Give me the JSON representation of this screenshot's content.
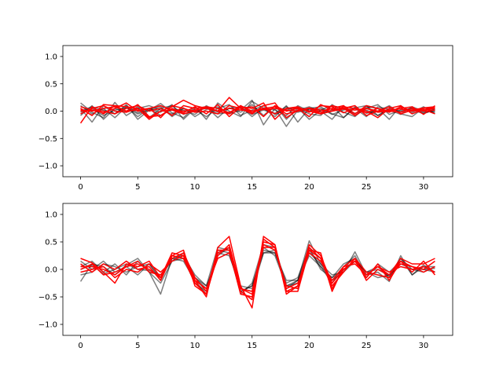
{
  "chart_data": [
    {
      "type": "line",
      "xlim": [
        -1.55,
        32.55
      ],
      "ylim": [
        -1.2,
        1.2
      ],
      "xticks": [
        0,
        5,
        10,
        15,
        20,
        25,
        30
      ],
      "yticks": [
        -1.0,
        -0.5,
        0.0,
        0.5,
        1.0
      ],
      "xtick_labels": [
        "0",
        "5",
        "10",
        "15",
        "20",
        "25",
        "30"
      ],
      "ytick_labels": [
        "−1.0",
        "−0.5",
        "0.0",
        "0.5",
        "1.0"
      ],
      "legend": "none",
      "grid": false,
      "colors": {
        "reference": "#000000",
        "prediction": "#ff0000"
      },
      "series": [
        {
          "group": "reference",
          "values": [
            0.15,
            -0.02,
            -0.12,
            0.16,
            -0.08,
            0.05,
            0.1,
            0.02,
            -0.05,
            0.06,
            -0.1,
            0.03,
            0.08,
            -0.05,
            0.02,
            0.2,
            -0.25,
            0.05,
            -0.28,
            0.02,
            0.08,
            0.0,
            -0.15,
            0.1,
            -0.08,
            0.05,
            0.12,
            -0.06,
            0.02,
            0.05,
            -0.02,
            0.0
          ]
        },
        {
          "group": "reference",
          "values": [
            0.05,
            -0.2,
            0.1,
            -0.05,
            0.12,
            -0.15,
            0.02,
            0.14,
            -0.03,
            -0.12,
            0.08,
            -0.15,
            0.15,
            0.0,
            -0.1,
            0.18,
            0.05,
            -0.1,
            0.1,
            -0.2,
            0.05,
            0.08,
            -0.05,
            -0.12,
            0.06,
            0.1,
            -0.08,
            0.02,
            -0.06,
            0.08,
            0.0,
            -0.02
          ]
        },
        {
          "group": "reference",
          "values": [
            -0.08,
            0.1,
            -0.15,
            0.05,
            -0.02,
            0.08,
            -0.12,
            0.05,
            0.1,
            -0.06,
            0.03,
            -0.1,
            0.05,
            0.12,
            -0.08,
            0.02,
            0.1,
            -0.06,
            0.04,
            0.06,
            -0.15,
            0.02,
            0.1,
            -0.12,
            0.08,
            -0.04,
            0.0,
            0.1,
            -0.05,
            -0.1,
            0.06,
            0.02
          ]
        },
        {
          "group": "reference",
          "values": [
            0.1,
            -0.05,
            0.05,
            -0.12,
            0.08,
            -0.1,
            0.05,
            -0.02,
            0.12,
            -0.15,
            0.05,
            0.08,
            -0.12,
            0.06,
            -0.02,
            0.12,
            -0.08,
            0.1,
            -0.15,
            0.05,
            -0.05,
            -0.08,
            0.12,
            -0.02,
            -0.1,
            0.08,
            0.05,
            -0.15,
            0.1,
            -0.03,
            0.08,
            -0.05
          ]
        },
        {
          "group": "reference",
          "values": [
            -0.02,
            0.05,
            -0.08,
            0.02,
            0.06,
            -0.05,
            0.02,
            0.08,
            -0.1,
            0.05,
            -0.02,
            0.06,
            -0.05,
            -0.02,
            0.06,
            -0.06,
            0.02,
            -0.04,
            0.08,
            -0.02,
            0.03,
            -0.05,
            0.02,
            0.06,
            -0.04,
            0.02,
            -0.08,
            0.05,
            0.0,
            0.03,
            -0.05,
            0.04
          ]
        },
        {
          "group": "reference",
          "values": [
            0.0,
            0.08,
            0.02,
            -0.05,
            0.1,
            -0.03,
            0.05,
            -0.08,
            0.03,
            0.02,
            -0.06,
            0.1,
            -0.02,
            0.05,
            0.08,
            -0.1,
            0.06,
            0.02,
            -0.08,
            0.1,
            0.0,
            0.05,
            -0.06,
            0.02,
            0.05,
            -0.1,
            0.08,
            0.03,
            -0.02,
            0.06,
            -0.04,
            0.02
          ]
        },
        {
          "group": "prediction",
          "values": [
            -0.22,
            0.08,
            -0.05,
            0.1,
            0.08,
            0.05,
            -0.15,
            0.0,
            0.08,
            0.2,
            0.1,
            0.05,
            0.0,
            0.25,
            0.05,
            -0.05,
            0.1,
            0.15,
            -0.12,
            0.02,
            0.05,
            -0.05,
            0.1,
            0.05,
            0.1,
            -0.08,
            0.0,
            0.08,
            -0.05,
            0.02,
            0.06,
            0.08
          ]
        },
        {
          "group": "prediction",
          "values": [
            0.05,
            -0.08,
            0.12,
            0.1,
            0.0,
            0.12,
            -0.1,
            -0.08,
            0.05,
            -0.03,
            0.08,
            -0.05,
            0.12,
            -0.1,
            0.08,
            0.05,
            0.15,
            -0.15,
            0.05,
            0.08,
            -0.02,
            0.1,
            0.08,
            -0.03,
            0.05,
            0.0,
            -0.12,
            0.05,
            0.1,
            -0.05,
            0.03,
            -0.05
          ]
        },
        {
          "group": "prediction",
          "values": [
            0.0,
            0.02,
            -0.03,
            0.05,
            0.15,
            0.0,
            0.05,
            -0.12,
            0.1,
            0.05,
            -0.02,
            0.0,
            -0.05,
            0.1,
            0.05,
            0.08,
            -0.1,
            0.1,
            0.0,
            0.05,
            -0.1,
            0.12,
            0.03,
            0.05,
            -0.08,
            0.05,
            -0.02,
            0.0,
            0.05,
            0.08,
            -0.06,
            0.1
          ]
        },
        {
          "group": "prediction",
          "values": [
            0.08,
            0.02,
            0.0,
            -0.05,
            0.05,
            0.1,
            0.0,
            0.05,
            -0.08,
            0.1,
            0.05,
            0.08,
            0.0,
            -0.05,
            0.1,
            -0.03,
            0.05,
            0.08,
            -0.05,
            0.0,
            0.06,
            -0.02,
            0.05,
            0.1,
            -0.05,
            0.1,
            0.05,
            -0.02,
            0.08,
            0.0,
            0.05,
            0.06
          ]
        },
        {
          "group": "prediction",
          "values": [
            -0.05,
            0.05,
            0.1,
            0.0,
            -0.02,
            0.05,
            -0.12,
            0.0,
            0.02,
            -0.05,
            0.0,
            0.08,
            0.05,
            -0.03,
            0.1,
            0.0,
            0.05,
            -0.05,
            0.05,
            0.06,
            0.0,
            -0.05,
            0.0,
            0.08,
            0.05,
            -0.03,
            0.05,
            0.0,
            -0.02,
            0.05,
            0.0,
            0.02
          ]
        },
        {
          "group": "prediction",
          "values": [
            0.02,
            0.0,
            0.05,
            0.08,
            0.0,
            0.02,
            0.05,
            0.1,
            0.02,
            0.0,
            0.02,
            0.05,
            0.0,
            0.05,
            0.02,
            0.0,
            0.03,
            0.05,
            0.02,
            0.0,
            0.05,
            0.02,
            0.0,
            0.04,
            0.02,
            0.05,
            0.0,
            0.02,
            0.04,
            0.0,
            0.02,
            0.05
          ]
        }
      ]
    },
    {
      "type": "line",
      "xlim": [
        -1.55,
        32.55
      ],
      "ylim": [
        -1.2,
        1.2
      ],
      "xticks": [
        0,
        5,
        10,
        15,
        20,
        25,
        30
      ],
      "yticks": [
        -1.0,
        -0.5,
        0.0,
        0.5,
        1.0
      ],
      "xtick_labels": [
        "0",
        "5",
        "10",
        "15",
        "20",
        "25",
        "30"
      ],
      "ytick_labels": [
        "−1.0",
        "−0.5",
        "0.0",
        "0.5",
        "1.0"
      ],
      "legend": "none",
      "grid": false,
      "colors": {
        "reference": "#000000",
        "prediction": "#ff0000"
      },
      "series": [
        {
          "group": "reference",
          "values": [
            -0.22,
            0.1,
            0.05,
            -0.1,
            0.08,
            0.2,
            -0.05,
            -0.45,
            0.2,
            0.25,
            -0.1,
            -0.3,
            0.4,
            0.35,
            -0.45,
            -0.25,
            0.45,
            0.4,
            -0.3,
            -0.2,
            0.52,
            0.1,
            -0.2,
            -0.05,
            0.32,
            -0.1,
            -0.05,
            -0.22,
            0.25,
            -0.1,
            0.08,
            -0.05
          ]
        },
        {
          "group": "reference",
          "values": [
            0.15,
            0.0,
            0.15,
            -0.05,
            0.05,
            -0.1,
            0.1,
            -0.2,
            0.25,
            0.2,
            -0.25,
            -0.4,
            0.35,
            0.3,
            -0.4,
            -0.3,
            0.35,
            0.3,
            -0.25,
            -0.15,
            0.4,
            0.0,
            -0.15,
            0.1,
            0.2,
            -0.05,
            0.05,
            -0.15,
            0.2,
            0.0,
            -0.05,
            0.05
          ]
        },
        {
          "group": "reference",
          "values": [
            0.05,
            0.15,
            -0.05,
            0.1,
            -0.1,
            0.15,
            -0.05,
            -0.25,
            0.15,
            0.3,
            -0.15,
            -0.35,
            0.25,
            0.4,
            -0.35,
            -0.4,
            0.3,
            0.35,
            -0.35,
            -0.2,
            0.35,
            0.05,
            -0.25,
            0.05,
            0.25,
            -0.15,
            0.1,
            -0.05,
            0.15,
            0.05,
            0.0,
            -0.05
          ]
        },
        {
          "group": "reference",
          "values": [
            -0.1,
            -0.05,
            0.1,
            0.05,
            -0.05,
            0.05,
            0.1,
            -0.15,
            0.2,
            0.15,
            -0.2,
            -0.45,
            0.3,
            0.25,
            -0.3,
            -0.35,
            0.4,
            0.25,
            -0.3,
            -0.25,
            0.3,
            0.1,
            -0.1,
            -0.05,
            0.15,
            -0.05,
            -0.15,
            -0.1,
            0.2,
            -0.1,
            0.05,
            0.05
          ]
        },
        {
          "group": "reference",
          "values": [
            0.0,
            0.08,
            -0.08,
            0.0,
            0.1,
            0.0,
            -0.02,
            -0.1,
            0.15,
            0.2,
            -0.15,
            -0.3,
            0.2,
            0.3,
            -0.4,
            -0.3,
            0.3,
            0.3,
            -0.2,
            -0.2,
            0.25,
            0.05,
            -0.15,
            0.0,
            0.15,
            -0.05,
            0.0,
            -0.12,
            0.1,
            0.0,
            0.0,
            0.02
          ]
        },
        {
          "group": "prediction",
          "values": [
            0.2,
            0.12,
            -0.05,
            -0.25,
            0.1,
            0.05,
            0.15,
            -0.15,
            0.3,
            0.25,
            -0.2,
            -0.5,
            0.4,
            0.6,
            -0.3,
            -0.7,
            0.6,
            0.45,
            -0.4,
            -0.4,
            0.35,
            0.3,
            -0.4,
            0.05,
            0.2,
            -0.2,
            0.0,
            -0.1,
            0.2,
            0.1,
            0.1,
            0.2
          ]
        },
        {
          "group": "prediction",
          "values": [
            0.1,
            -0.05,
            0.1,
            0.0,
            0.15,
            0.0,
            0.05,
            -0.2,
            0.25,
            0.35,
            -0.3,
            -0.45,
            0.25,
            0.45,
            -0.35,
            -0.4,
            0.5,
            0.45,
            -0.45,
            -0.3,
            0.45,
            0.25,
            -0.25,
            0.0,
            0.15,
            -0.15,
            0.1,
            -0.2,
            0.15,
            -0.05,
            0.15,
            -0.1
          ]
        },
        {
          "group": "prediction",
          "values": [
            0.0,
            0.1,
            -0.1,
            -0.05,
            0.05,
            0.15,
            -0.05,
            -0.1,
            0.2,
            0.3,
            -0.15,
            -0.4,
            0.35,
            0.35,
            -0.45,
            -0.5,
            0.45,
            0.35,
            -0.3,
            -0.35,
            0.4,
            0.2,
            -0.3,
            -0.05,
            0.2,
            -0.05,
            -0.1,
            -0.15,
            0.1,
            0.05,
            -0.05,
            0.05
          ]
        },
        {
          "group": "prediction",
          "values": [
            -0.05,
            0.0,
            0.05,
            -0.15,
            0.0,
            -0.05,
            0.1,
            -0.05,
            0.15,
            0.25,
            -0.2,
            -0.35,
            0.2,
            0.3,
            -0.35,
            -0.45,
            0.4,
            0.4,
            -0.35,
            -0.25,
            0.3,
            0.15,
            -0.2,
            0.05,
            0.1,
            -0.1,
            0.05,
            -0.05,
            0.05,
            0.0,
            0.05,
            -0.05
          ]
        },
        {
          "group": "prediction",
          "values": [
            0.05,
            0.05,
            0.0,
            -0.1,
            0.05,
            0.1,
            0.0,
            -0.15,
            0.25,
            0.2,
            -0.25,
            -0.45,
            0.3,
            0.4,
            -0.4,
            -0.55,
            0.55,
            0.4,
            -0.4,
            -0.3,
            0.35,
            0.2,
            -0.35,
            0.0,
            0.15,
            -0.1,
            0.05,
            -0.1,
            0.15,
            0.05,
            0.0,
            0.15
          ]
        }
      ]
    }
  ]
}
